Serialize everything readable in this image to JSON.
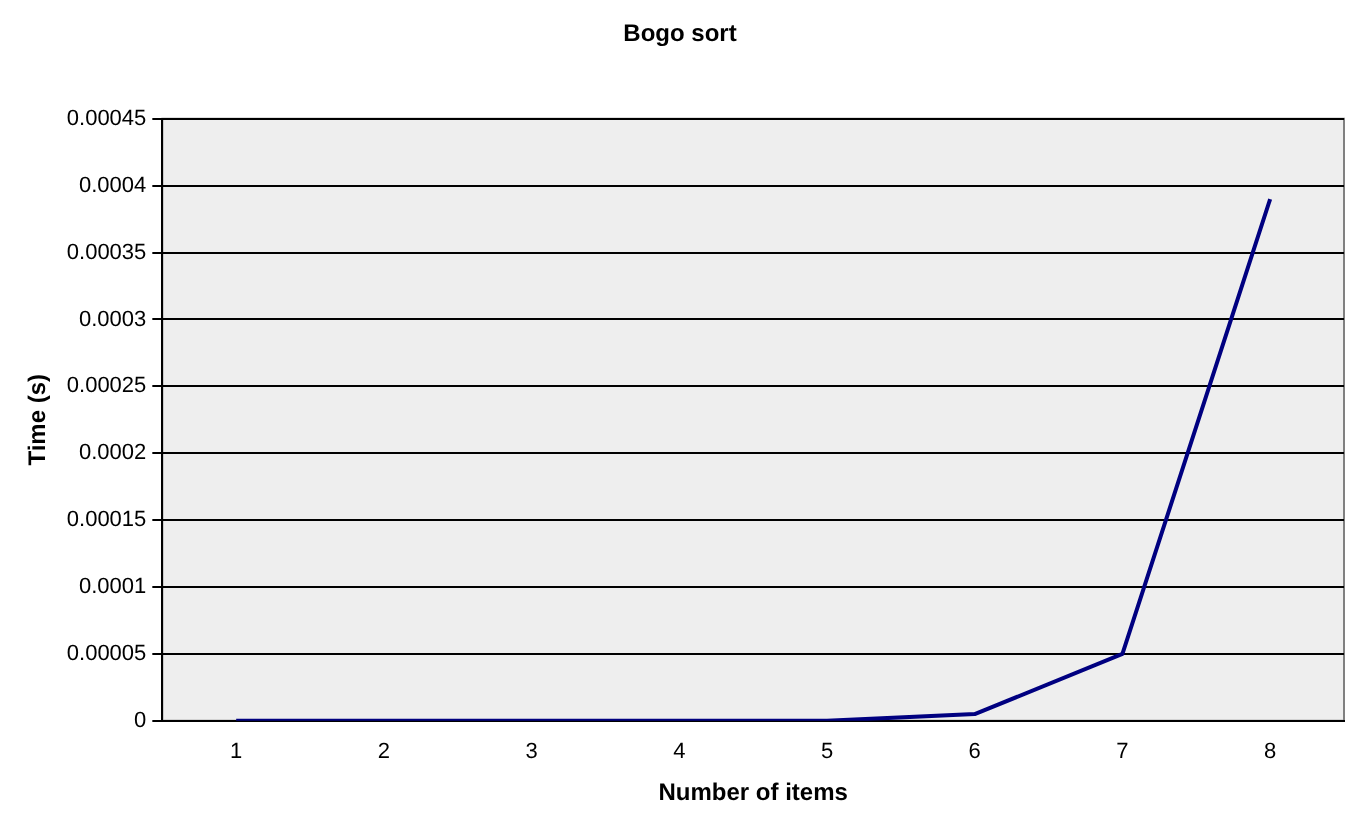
{
  "chart_data": {
    "type": "line",
    "title": "Bogo sort",
    "xlabel": "Number of items",
    "ylabel": "Time (s)",
    "categories": [
      "1",
      "2",
      "3",
      "4",
      "5",
      "6",
      "7",
      "8"
    ],
    "series": [
      {
        "color": "#000080",
        "values": [
          0,
          0,
          0,
          0,
          0,
          5e-06,
          5e-05,
          0.00039
        ]
      }
    ],
    "ylim": [
      0,
      0.00045
    ],
    "yticks": [
      0,
      {
        "value": 5e-05,
        "label": "0.00005"
      },
      0.0001,
      0.00015,
      0.0002,
      0.00025,
      0.0003,
      0.00035,
      0.0004,
      0.00045
    ],
    "grid": "y",
    "legend": false,
    "marker": "none",
    "line_style": "solid"
  }
}
